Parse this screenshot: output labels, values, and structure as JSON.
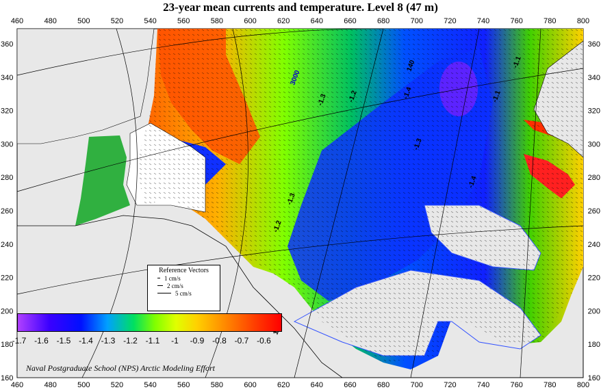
{
  "title": "23-year mean currents and temperature. Level  8 (47 m)",
  "x_ticks": [
    "460",
    "480",
    "500",
    "520",
    "540",
    "560",
    "580",
    "600",
    "620",
    "640",
    "660",
    "680",
    "700",
    "720",
    "740",
    "760",
    "780",
    "800"
  ],
  "y_ticks": [
    "360",
    "340",
    "320",
    "300",
    "280",
    "260",
    "240",
    "220",
    "200",
    "180",
    "160"
  ],
  "reference_vectors": {
    "title": "Reference Vectors",
    "items": [
      "1 cm/s",
      "2 cm/s",
      "5 cm/s"
    ]
  },
  "colorbar": {
    "labels": [
      "-1.7",
      "-1.6",
      "-1.5",
      "-1.4",
      "-1.3",
      "-1.2",
      "-1.1",
      "-1",
      "-0.9",
      "-0.8",
      "-0.7",
      "-0.6"
    ]
  },
  "map_labels": [
    "3000",
    "-1.4",
    "-1.3",
    "-1.2",
    "-1.1",
    "-1.3",
    "-1.4",
    "-1.3",
    "-1.2",
    "-1.1",
    "140",
    "140"
  ],
  "credit": "Naval Postgraduate School (NPS) Arctic Modeling Effort",
  "colors": {
    "land": "#e6e6e6",
    "ocean_cold": "#0030ff",
    "ocean_warm": "#ff4000"
  }
}
